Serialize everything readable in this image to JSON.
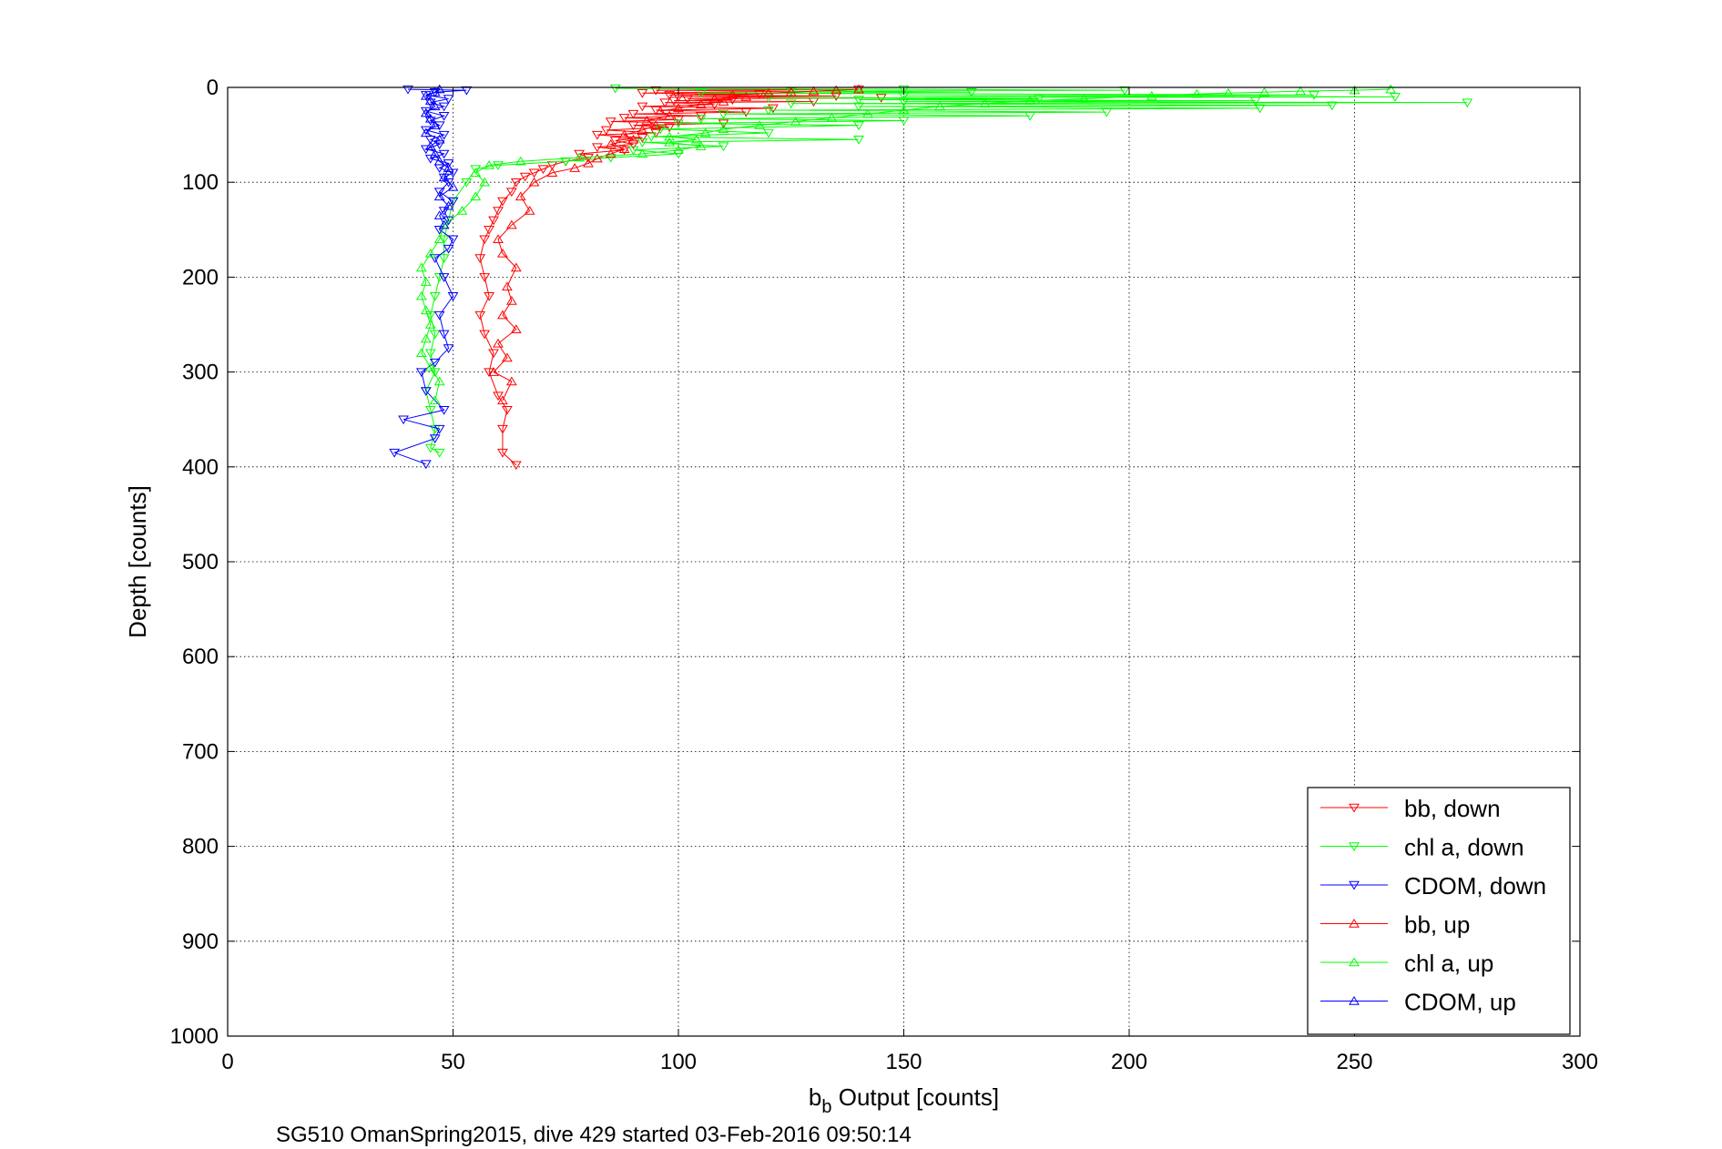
{
  "chart_data": {
    "type": "line",
    "title": "",
    "xlabel_main": "b",
    "xlabel_sub": "b",
    "xlabel_rest": " Output [counts]",
    "ylabel": "Depth [counts]",
    "footer": "SG510 OmanSpring2015, dive 429 started 03-Feb-2016 09:50:14",
    "xlim": [
      0,
      300
    ],
    "ylim": [
      0,
      1000
    ],
    "y_reversed": true,
    "grid": true,
    "xticks": [
      "0",
      "50",
      "100",
      "150",
      "200",
      "250",
      "300"
    ],
    "yticks": [
      "0",
      "100",
      "200",
      "300",
      "400",
      "500",
      "600",
      "700",
      "800",
      "900",
      "1000"
    ],
    "legend_position": "bottom-right",
    "series": [
      {
        "name": "bb, down",
        "color": "#ff0000",
        "marker": "triangle-down",
        "line": true,
        "points": [
          [
            140,
            2
          ],
          [
            95,
            3
          ],
          [
            125,
            4
          ],
          [
            92,
            6
          ],
          [
            118,
            7
          ],
          [
            98,
            8
          ],
          [
            135,
            9
          ],
          [
            100,
            10
          ],
          [
            145,
            11
          ],
          [
            102,
            12
          ],
          [
            112,
            13
          ],
          [
            99,
            14
          ],
          [
            130,
            15
          ],
          [
            97,
            16
          ],
          [
            108,
            18
          ],
          [
            92,
            20
          ],
          [
            121,
            22
          ],
          [
            95,
            24
          ],
          [
            115,
            26
          ],
          [
            90,
            28
          ],
          [
            105,
            30
          ],
          [
            88,
            32
          ],
          [
            100,
            34
          ],
          [
            85,
            36
          ],
          [
            110,
            38
          ],
          [
            90,
            40
          ],
          [
            98,
            42
          ],
          [
            84,
            45
          ],
          [
            95,
            48
          ],
          [
            82,
            50
          ],
          [
            92,
            53
          ],
          [
            86,
            56
          ],
          [
            90,
            60
          ],
          [
            82,
            63
          ],
          [
            88,
            66
          ],
          [
            78,
            70
          ],
          [
            80,
            74
          ],
          [
            75,
            78
          ],
          [
            72,
            82
          ],
          [
            70,
            86
          ],
          [
            68,
            90
          ],
          [
            66,
            94
          ],
          [
            64,
            100
          ],
          [
            63,
            110
          ],
          [
            61,
            120
          ],
          [
            60,
            130
          ],
          [
            59,
            140
          ],
          [
            58,
            150
          ],
          [
            57,
            160
          ],
          [
            56,
            180
          ],
          [
            57,
            200
          ],
          [
            58,
            220
          ],
          [
            56,
            240
          ],
          [
            57,
            260
          ],
          [
            59,
            280
          ],
          [
            58,
            300
          ],
          [
            60,
            325
          ],
          [
            62,
            340
          ],
          [
            61,
            360
          ],
          [
            61,
            385
          ],
          [
            64,
            398
          ]
        ]
      },
      {
        "name": "chl a, down",
        "color": "#00ff00",
        "marker": "triangle-down",
        "line": true,
        "points": [
          [
            86,
            1
          ],
          [
            150,
            2
          ],
          [
            199,
            3
          ],
          [
            125,
            4
          ],
          [
            165,
            5
          ],
          [
            105,
            6
          ],
          [
            241,
            8
          ],
          [
            150,
            9
          ],
          [
            259,
            10
          ],
          [
            120,
            11
          ],
          [
            180,
            12
          ],
          [
            140,
            13
          ],
          [
            228,
            14
          ],
          [
            150,
            15
          ],
          [
            275,
            16
          ],
          [
            125,
            17
          ],
          [
            245,
            19
          ],
          [
            140,
            20
          ],
          [
            229,
            22
          ],
          [
            120,
            24
          ],
          [
            195,
            26
          ],
          [
            110,
            28
          ],
          [
            178,
            30
          ],
          [
            105,
            33
          ],
          [
            150,
            35
          ],
          [
            100,
            38
          ],
          [
            140,
            40
          ],
          [
            96,
            44
          ],
          [
            120,
            48
          ],
          [
            94,
            52
          ],
          [
            140,
            55
          ],
          [
            92,
            58
          ],
          [
            110,
            62
          ],
          [
            90,
            66
          ],
          [
            100,
            70
          ],
          [
            85,
            74
          ],
          [
            75,
            78
          ],
          [
            60,
            82
          ],
          [
            55,
            86
          ],
          [
            53,
            100
          ],
          [
            50,
            120
          ],
          [
            49,
            140
          ],
          [
            48,
            160
          ],
          [
            48,
            180
          ],
          [
            47,
            200
          ],
          [
            46,
            220
          ],
          [
            45,
            240
          ],
          [
            46,
            260
          ],
          [
            45,
            280
          ],
          [
            46,
            300
          ],
          [
            44,
            320
          ],
          [
            45,
            340
          ],
          [
            46,
            360
          ],
          [
            45,
            380
          ],
          [
            47,
            385
          ]
        ]
      },
      {
        "name": "CDOM, down",
        "color": "#0000ff",
        "marker": "triangle-down",
        "line": true,
        "points": [
          [
            40,
            2
          ],
          [
            53,
            3
          ],
          [
            46,
            5
          ],
          [
            44,
            8
          ],
          [
            49,
            12
          ],
          [
            45,
            16
          ],
          [
            48,
            20
          ],
          [
            44,
            25
          ],
          [
            48,
            30
          ],
          [
            45,
            35
          ],
          [
            47,
            40
          ],
          [
            44,
            45
          ],
          [
            48,
            50
          ],
          [
            45,
            55
          ],
          [
            47,
            60
          ],
          [
            44,
            65
          ],
          [
            48,
            70
          ],
          [
            45,
            75
          ],
          [
            49,
            80
          ],
          [
            47,
            85
          ],
          [
            50,
            90
          ],
          [
            48,
            95
          ],
          [
            49,
            100
          ],
          [
            47,
            110
          ],
          [
            50,
            120
          ],
          [
            48,
            130
          ],
          [
            49,
            140
          ],
          [
            47,
            150
          ],
          [
            50,
            160
          ],
          [
            49,
            170
          ],
          [
            46,
            180
          ],
          [
            48,
            200
          ],
          [
            50,
            220
          ],
          [
            47,
            240
          ],
          [
            48,
            260
          ],
          [
            49,
            275
          ],
          [
            46,
            290
          ],
          [
            43,
            300
          ],
          [
            44,
            320
          ],
          [
            48,
            340
          ],
          [
            39,
            350
          ],
          [
            47,
            360
          ],
          [
            46,
            370
          ],
          [
            37,
            385
          ],
          [
            44,
            397
          ]
        ]
      },
      {
        "name": "bb, up",
        "color": "#ff0000",
        "marker": "triangle-up",
        "line": true,
        "points": [
          [
            61,
            330
          ],
          [
            63,
            310
          ],
          [
            59,
            300
          ],
          [
            62,
            285
          ],
          [
            60,
            270
          ],
          [
            64,
            255
          ],
          [
            61,
            240
          ],
          [
            63,
            225
          ],
          [
            62,
            210
          ],
          [
            64,
            190
          ],
          [
            61,
            175
          ],
          [
            60,
            160
          ],
          [
            63,
            145
          ],
          [
            67,
            130
          ],
          [
            65,
            115
          ],
          [
            68,
            100
          ],
          [
            72,
            90
          ],
          [
            77,
            85
          ],
          [
            80,
            80
          ],
          [
            82,
            75
          ],
          [
            85,
            70
          ],
          [
            88,
            65
          ],
          [
            85,
            60
          ],
          [
            90,
            55
          ],
          [
            88,
            50
          ],
          [
            92,
            45
          ],
          [
            95,
            40
          ],
          [
            93,
            35
          ],
          [
            98,
            30
          ],
          [
            96,
            25
          ],
          [
            100,
            22
          ],
          [
            105,
            18
          ],
          [
            110,
            15
          ],
          [
            108,
            12
          ],
          [
            115,
            10
          ],
          [
            112,
            8
          ],
          [
            120,
            6
          ],
          [
            125,
            5
          ],
          [
            130,
            4
          ],
          [
            135,
            3
          ],
          [
            140,
            2
          ]
        ]
      },
      {
        "name": "chl a, up",
        "color": "#00ff00",
        "marker": "triangle-up",
        "line": true,
        "points": [
          [
            46,
            330
          ],
          [
            47,
            310
          ],
          [
            45,
            295
          ],
          [
            43,
            280
          ],
          [
            44,
            265
          ],
          [
            45,
            250
          ],
          [
            44,
            235
          ],
          [
            43,
            220
          ],
          [
            44,
            205
          ],
          [
            43,
            190
          ],
          [
            45,
            175
          ],
          [
            47,
            160
          ],
          [
            48,
            145
          ],
          [
            52,
            130
          ],
          [
            55,
            115
          ],
          [
            57,
            100
          ],
          [
            55,
            90
          ],
          [
            58,
            82
          ],
          [
            65,
            78
          ],
          [
            78,
            74
          ],
          [
            92,
            70
          ],
          [
            100,
            66
          ],
          [
            105,
            62
          ],
          [
            98,
            58
          ],
          [
            104,
            55
          ],
          [
            98,
            52
          ],
          [
            106,
            48
          ],
          [
            110,
            44
          ],
          [
            118,
            40
          ],
          [
            126,
            36
          ],
          [
            134,
            32
          ],
          [
            142,
            28
          ],
          [
            150,
            24
          ],
          [
            158,
            20
          ],
          [
            168,
            17
          ],
          [
            178,
            14
          ],
          [
            190,
            12
          ],
          [
            205,
            9
          ],
          [
            215,
            7
          ],
          [
            222,
            6
          ],
          [
            230,
            5
          ],
          [
            238,
            4
          ],
          [
            250,
            3
          ],
          [
            258,
            2
          ]
        ]
      },
      {
        "name": "CDOM, up",
        "color": "#0000ff",
        "marker": "triangle-up",
        "line": true,
        "points": [
          [
            48,
            145
          ],
          [
            47,
            135
          ],
          [
            49,
            125
          ],
          [
            47,
            115
          ],
          [
            50,
            105
          ],
          [
            48,
            95
          ],
          [
            49,
            85
          ],
          [
            47,
            78
          ],
          [
            46,
            70
          ],
          [
            45,
            62
          ],
          [
            47,
            55
          ],
          [
            44,
            48
          ],
          [
            46,
            40
          ],
          [
            45,
            33
          ],
          [
            44,
            27
          ],
          [
            46,
            20
          ],
          [
            45,
            14
          ],
          [
            44,
            9
          ],
          [
            46,
            5
          ],
          [
            47,
            2
          ]
        ]
      }
    ]
  }
}
